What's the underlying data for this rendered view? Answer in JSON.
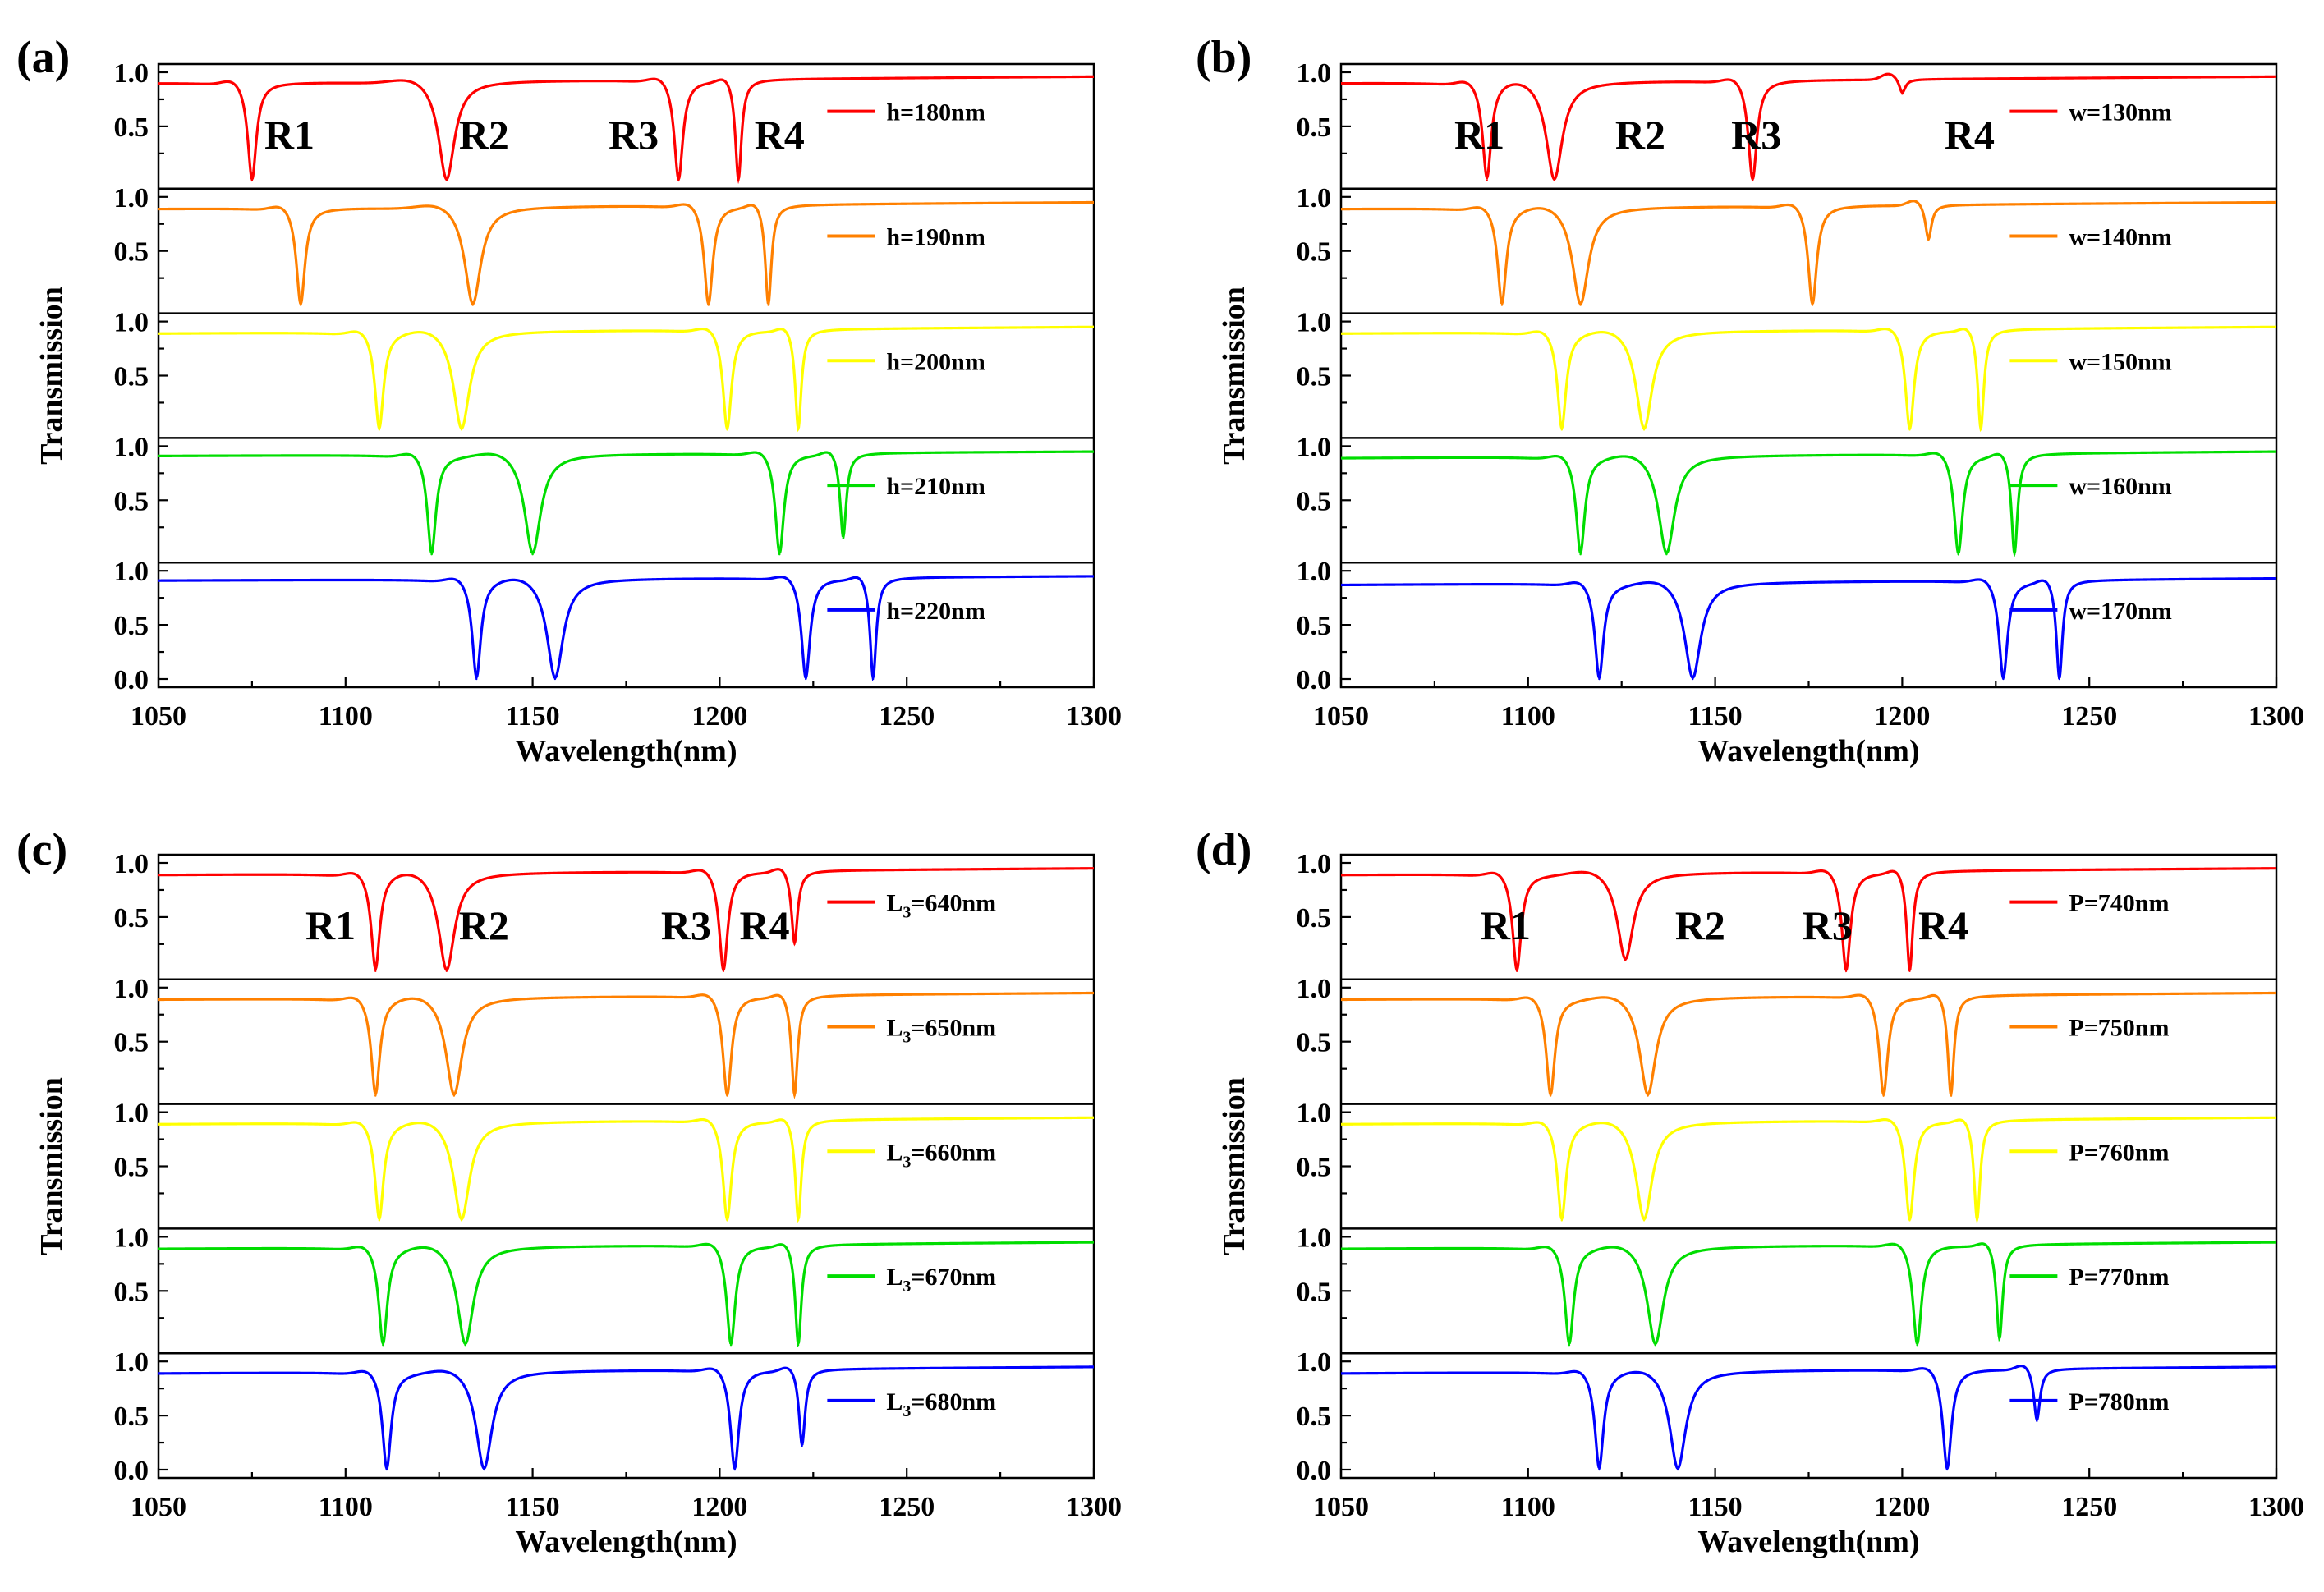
{
  "chart_data": [
    {
      "type": "line",
      "panel_label": "(a)",
      "xlabel": "Wavelength(nm)",
      "ylabel": "Transmission",
      "xlim": [
        1050,
        1300
      ],
      "xticks": [
        "1050",
        "1100",
        "1150",
        "1200",
        "1250",
        "1300"
      ],
      "yticks": [
        "0.0",
        "0.5",
        "1.0"
      ],
      "ylim": [
        0,
        1
      ],
      "resonance_labels": [
        {
          "text": "R1",
          "x": 1085
        },
        {
          "text": "R2",
          "x": 1137
        },
        {
          "text": "R3",
          "x": 1177
        },
        {
          "text": "R4",
          "x": 1216
        }
      ],
      "series": [
        {
          "name": "h=180nm",
          "color": "#ff0000",
          "base": 0.9,
          "end": 0.96,
          "dips": [
            {
              "x": 1075,
              "y": 0.0
            },
            {
              "x": 1127,
              "y": 0.0
            },
            {
              "x": 1189,
              "y": 0.0
            },
            {
              "x": 1205,
              "y": 0.0
            }
          ]
        },
        {
          "name": "h=190nm",
          "color": "#ff8000",
          "base": 0.89,
          "end": 0.95,
          "dips": [
            {
              "x": 1088,
              "y": 0.0
            },
            {
              "x": 1134,
              "y": 0.0
            },
            {
              "x": 1197,
              "y": 0.0
            },
            {
              "x": 1213,
              "y": 0.0
            }
          ]
        },
        {
          "name": "h=200nm",
          "color": "#ffff00",
          "base": 0.89,
          "end": 0.95,
          "dips": [
            {
              "x": 1109,
              "y": 0.0
            },
            {
              "x": 1131,
              "y": 0.0
            },
            {
              "x": 1202,
              "y": 0.0
            },
            {
              "x": 1221,
              "y": 0.0
            }
          ]
        },
        {
          "name": "h=210nm",
          "color": "#00dd00",
          "base": 0.91,
          "end": 0.95,
          "dips": [
            {
              "x": 1123,
              "y": 0.0
            },
            {
              "x": 1150,
              "y": 0.0
            },
            {
              "x": 1216,
              "y": 0.0
            },
            {
              "x": 1233,
              "y": 0.15
            }
          ]
        },
        {
          "name": "h=220nm",
          "color": "#0000ff",
          "base": 0.91,
          "end": 0.95,
          "dips": [
            {
              "x": 1135,
              "y": 0.0
            },
            {
              "x": 1156,
              "y": 0.0
            },
            {
              "x": 1223,
              "y": 0.0
            },
            {
              "x": 1241,
              "y": 0.0
            }
          ]
        }
      ]
    },
    {
      "type": "line",
      "panel_label": "(b)",
      "xlabel": "Wavelength(nm)",
      "ylabel": "Transmission",
      "xlim": [
        1050,
        1300
      ],
      "xticks": [
        "1050",
        "1100",
        "1150",
        "1200",
        "1250",
        "1300"
      ],
      "yticks": [
        "0.0",
        "0.5",
        "1.0"
      ],
      "ylim": [
        0,
        1
      ],
      "resonance_labels": [
        {
          "text": "R1",
          "x": 1087
        },
        {
          "text": "R2",
          "x": 1130
        },
        {
          "text": "R3",
          "x": 1161
        },
        {
          "text": "R4",
          "x": 1218
        }
      ],
      "series": [
        {
          "name": "w=130nm",
          "color": "#ff0000",
          "base": 0.9,
          "end": 0.96,
          "dips": [
            {
              "x": 1089,
              "y": 0.0
            },
            {
              "x": 1107,
              "y": 0.0
            },
            {
              "x": 1160,
              "y": 0.0
            },
            {
              "x": 1200,
              "y": 0.8
            }
          ]
        },
        {
          "name": "w=140nm",
          "color": "#ff8000",
          "base": 0.89,
          "end": 0.95,
          "dips": [
            {
              "x": 1093,
              "y": 0.0
            },
            {
              "x": 1114,
              "y": 0.0
            },
            {
              "x": 1176,
              "y": 0.0
            },
            {
              "x": 1207,
              "y": 0.6
            }
          ]
        },
        {
          "name": "w=150nm",
          "color": "#ffff00",
          "base": 0.89,
          "end": 0.95,
          "dips": [
            {
              "x": 1109,
              "y": 0.0
            },
            {
              "x": 1131,
              "y": 0.0
            },
            {
              "x": 1202,
              "y": 0.0
            },
            {
              "x": 1221,
              "y": 0.0
            }
          ]
        },
        {
          "name": "w=160nm",
          "color": "#00dd00",
          "base": 0.89,
          "end": 0.95,
          "dips": [
            {
              "x": 1114,
              "y": 0.0
            },
            {
              "x": 1137,
              "y": 0.0
            },
            {
              "x": 1215,
              "y": 0.0
            },
            {
              "x": 1230,
              "y": 0.0
            }
          ]
        },
        {
          "name": "w=170nm",
          "color": "#0000ff",
          "base": 0.87,
          "end": 0.93,
          "dips": [
            {
              "x": 1119,
              "y": 0.0
            },
            {
              "x": 1144,
              "y": 0.0
            },
            {
              "x": 1227,
              "y": 0.0
            },
            {
              "x": 1242,
              "y": 0.0
            }
          ]
        }
      ]
    },
    {
      "type": "line",
      "panel_label": "(c)",
      "xlabel": "Wavelength(nm)",
      "ylabel": "Transmission",
      "xlim": [
        1050,
        1300
      ],
      "xticks": [
        "1050",
        "1100",
        "1150",
        "1200",
        "1250",
        "1300"
      ],
      "yticks": [
        "0.0",
        "0.5",
        "1.0"
      ],
      "ylim": [
        0,
        1
      ],
      "resonance_labels": [
        {
          "text": "R1",
          "x": 1096
        },
        {
          "text": "R2",
          "x": 1137
        },
        {
          "text": "R3",
          "x": 1191
        },
        {
          "text": "R4",
          "x": 1212
        }
      ],
      "series": [
        {
          "name": "L3=640nm",
          "name_main": "L",
          "name_sub": "3",
          "name_rest": "=640nm",
          "color": "#ff0000",
          "base": 0.89,
          "end": 0.95,
          "dips": [
            {
              "x": 1108,
              "y": 0.0
            },
            {
              "x": 1127,
              "y": 0.0
            },
            {
              "x": 1201,
              "y": 0.0
            },
            {
              "x": 1220,
              "y": 0.25
            }
          ]
        },
        {
          "name": "L3=650nm",
          "name_main": "L",
          "name_sub": "3",
          "name_rest": "=650nm",
          "color": "#ff8000",
          "base": 0.89,
          "end": 0.95,
          "dips": [
            {
              "x": 1108,
              "y": 0.0
            },
            {
              "x": 1129,
              "y": 0.0
            },
            {
              "x": 1202,
              "y": 0.0
            },
            {
              "x": 1220,
              "y": 0.0
            }
          ]
        },
        {
          "name": "L3=660nm",
          "name_main": "L",
          "name_sub": "3",
          "name_rest": "=660nm",
          "color": "#ffff00",
          "base": 0.89,
          "end": 0.95,
          "dips": [
            {
              "x": 1109,
              "y": 0.0
            },
            {
              "x": 1131,
              "y": 0.0
            },
            {
              "x": 1202,
              "y": 0.0
            },
            {
              "x": 1221,
              "y": 0.0
            }
          ]
        },
        {
          "name": "L3=670nm",
          "name_main": "L",
          "name_sub": "3",
          "name_rest": "=670nm",
          "color": "#00dd00",
          "base": 0.89,
          "end": 0.95,
          "dips": [
            {
              "x": 1110,
              "y": 0.0
            },
            {
              "x": 1132,
              "y": 0.0
            },
            {
              "x": 1203,
              "y": 0.0
            },
            {
              "x": 1221,
              "y": 0.0
            }
          ]
        },
        {
          "name": "L3=680nm",
          "name_main": "L",
          "name_sub": "3",
          "name_rest": "=680nm",
          "color": "#0000ff",
          "base": 0.89,
          "end": 0.95,
          "dips": [
            {
              "x": 1111,
              "y": 0.0
            },
            {
              "x": 1137,
              "y": 0.0
            },
            {
              "x": 1204,
              "y": 0.0
            },
            {
              "x": 1222,
              "y": 0.22
            }
          ]
        }
      ]
    },
    {
      "type": "line",
      "panel_label": "(d)",
      "xlabel": "Wavelength(nm)",
      "ylabel": "Transmission",
      "xlim": [
        1050,
        1300
      ],
      "xticks": [
        "1050",
        "1100",
        "1150",
        "1200",
        "1250",
        "1300"
      ],
      "yticks": [
        "0.0",
        "0.5",
        "1.0"
      ],
      "ylim": [
        0,
        1
      ],
      "resonance_labels": [
        {
          "text": "R1",
          "x": 1094
        },
        {
          "text": "R2",
          "x": 1146
        },
        {
          "text": "R3",
          "x": 1180
        },
        {
          "text": "R4",
          "x": 1211
        }
      ],
      "series": [
        {
          "name": "P=740nm",
          "color": "#ff0000",
          "base": 0.89,
          "end": 0.95,
          "dips": [
            {
              "x": 1097,
              "y": 0.0
            },
            {
              "x": 1126,
              "y": 0.1
            },
            {
              "x": 1185,
              "y": 0.0
            },
            {
              "x": 1202,
              "y": 0.0
            }
          ]
        },
        {
          "name": "P=750nm",
          "color": "#ff8000",
          "base": 0.89,
          "end": 0.95,
          "dips": [
            {
              "x": 1106,
              "y": 0.0
            },
            {
              "x": 1132,
              "y": 0.0
            },
            {
              "x": 1195,
              "y": 0.0
            },
            {
              "x": 1213,
              "y": 0.0
            }
          ]
        },
        {
          "name": "P=760nm",
          "color": "#ffff00",
          "base": 0.89,
          "end": 0.95,
          "dips": [
            {
              "x": 1109,
              "y": 0.0
            },
            {
              "x": 1131,
              "y": 0.0
            },
            {
              "x": 1202,
              "y": 0.0
            },
            {
              "x": 1220,
              "y": 0.0
            }
          ]
        },
        {
          "name": "P=770nm",
          "color": "#00dd00",
          "base": 0.89,
          "end": 0.95,
          "dips": [
            {
              "x": 1111,
              "y": 0.0
            },
            {
              "x": 1134,
              "y": 0.0
            },
            {
              "x": 1204,
              "y": 0.0
            },
            {
              "x": 1226,
              "y": 0.05
            }
          ]
        },
        {
          "name": "P=780nm",
          "color": "#0000ff",
          "base": 0.89,
          "end": 0.95,
          "dips": [
            {
              "x": 1119,
              "y": 0.0
            },
            {
              "x": 1140,
              "y": 0.0
            },
            {
              "x": 1212,
              "y": 0.0
            },
            {
              "x": 1236,
              "y": 0.45
            }
          ]
        }
      ]
    }
  ]
}
